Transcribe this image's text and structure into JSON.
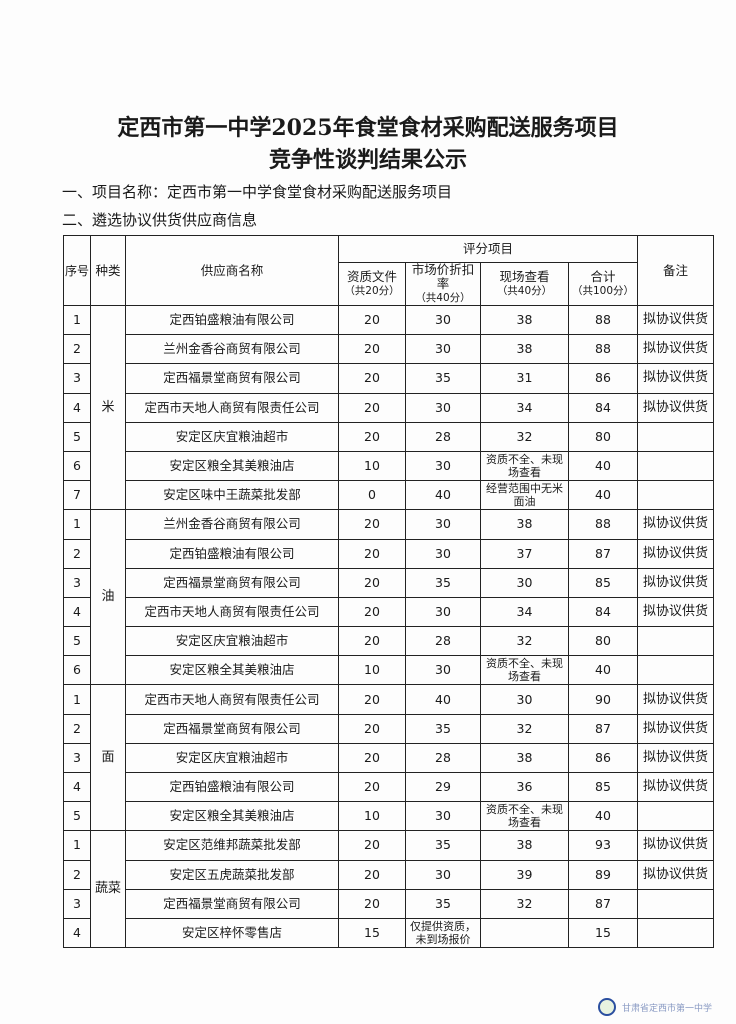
{
  "title_line1": "定西市第一中学2025年食堂食材采购配送服务项目",
  "title_line2": "竞争性谈判结果公示",
  "section1": "一、项目名称：定西市第一中学食堂食材采购配送服务项目",
  "section2": "二、遴选协议供货供应商信息",
  "headers": {
    "no": "序号",
    "category": "种类",
    "supplier": "供应商名称",
    "scoring": "评分项目",
    "qual": "资质文件",
    "qual_sub": "（共20分）",
    "price": "市场价折扣率",
    "price_sub": "（共40分）",
    "site": "现场查看",
    "site_sub": "（共40分）",
    "total": "合计",
    "total_sub": "（共100分）",
    "remark": "备注"
  },
  "groups": [
    {
      "category": "米",
      "rows": [
        {
          "no": "1",
          "supplier": "定西铂盛粮油有限公司",
          "qual": "20",
          "price": "30",
          "site": "38",
          "total": "88",
          "remark": "拟协议供货"
        },
        {
          "no": "2",
          "supplier": "兰州金香谷商贸有限公司",
          "qual": "20",
          "price": "30",
          "site": "38",
          "total": "88",
          "remark": "拟协议供货"
        },
        {
          "no": "3",
          "supplier": "定西福景堂商贸有限公司",
          "qual": "20",
          "price": "35",
          "site": "31",
          "total": "86",
          "remark": "拟协议供货"
        },
        {
          "no": "4",
          "supplier": "定西市天地人商贸有限责任公司",
          "qual": "20",
          "price": "30",
          "site": "34",
          "total": "84",
          "remark": "拟协议供货"
        },
        {
          "no": "5",
          "supplier": "安定区庆宜粮油超市",
          "qual": "20",
          "price": "28",
          "site": "32",
          "total": "80",
          "remark": ""
        },
        {
          "no": "6",
          "supplier": "安定区粮全其美粮油店",
          "qual": "10",
          "price": "30",
          "site": "资质不全、未现场查看",
          "total": "40",
          "remark": ""
        },
        {
          "no": "7",
          "supplier": "安定区味中王蔬菜批发部",
          "qual": "0",
          "price": "40",
          "site": "经营范围中无米面油",
          "total": "40",
          "remark": ""
        }
      ]
    },
    {
      "category": "油",
      "rows": [
        {
          "no": "1",
          "supplier": "兰州金香谷商贸有限公司",
          "qual": "20",
          "price": "30",
          "site": "38",
          "total": "88",
          "remark": "拟协议供货"
        },
        {
          "no": "2",
          "supplier": "定西铂盛粮油有限公司",
          "qual": "20",
          "price": "30",
          "site": "37",
          "total": "87",
          "remark": "拟协议供货"
        },
        {
          "no": "3",
          "supplier": "定西福景堂商贸有限公司",
          "qual": "20",
          "price": "35",
          "site": "30",
          "total": "85",
          "remark": "拟协议供货"
        },
        {
          "no": "4",
          "supplier": "定西市天地人商贸有限责任公司",
          "qual": "20",
          "price": "30",
          "site": "34",
          "total": "84",
          "remark": "拟协议供货"
        },
        {
          "no": "5",
          "supplier": "安定区庆宜粮油超市",
          "qual": "20",
          "price": "28",
          "site": "32",
          "total": "80",
          "remark": ""
        },
        {
          "no": "6",
          "supplier": "安定区粮全其美粮油店",
          "qual": "10",
          "price": "30",
          "site": "资质不全、未现场查看",
          "total": "40",
          "remark": ""
        }
      ]
    },
    {
      "category": "面",
      "rows": [
        {
          "no": "1",
          "supplier": "定西市天地人商贸有限责任公司",
          "qual": "20",
          "price": "40",
          "site": "30",
          "total": "90",
          "remark": "拟协议供货"
        },
        {
          "no": "2",
          "supplier": "定西福景堂商贸有限公司",
          "qual": "20",
          "price": "35",
          "site": "32",
          "total": "87",
          "remark": "拟协议供货"
        },
        {
          "no": "3",
          "supplier": "安定区庆宜粮油超市",
          "qual": "20",
          "price": "28",
          "site": "38",
          "total": "86",
          "remark": "拟协议供货"
        },
        {
          "no": "4",
          "supplier": "定西铂盛粮油有限公司",
          "qual": "20",
          "price": "29",
          "site": "36",
          "total": "85",
          "remark": "拟协议供货"
        },
        {
          "no": "5",
          "supplier": "安定区粮全其美粮油店",
          "qual": "10",
          "price": "30",
          "site": "资质不全、未现场查看",
          "total": "40",
          "remark": ""
        }
      ]
    },
    {
      "category": "蔬菜",
      "rows": [
        {
          "no": "1",
          "supplier": "安定区范维邦蔬菜批发部",
          "qual": "20",
          "price": "35",
          "site": "38",
          "total": "93",
          "remark": "拟协议供货"
        },
        {
          "no": "2",
          "supplier": "安定区五虎蔬菜批发部",
          "qual": "20",
          "price": "30",
          "site": "39",
          "total": "89",
          "remark": "拟协议供货"
        },
        {
          "no": "3",
          "supplier": "定西福景堂商贸有限公司",
          "qual": "20",
          "price": "35",
          "site": "32",
          "total": "87",
          "remark": ""
        },
        {
          "no": "4",
          "supplier": "安定区梓怀零售店",
          "qual": "15",
          "price": "仅提供资质，未到场报价",
          "site": "",
          "total": "15",
          "remark": ""
        }
      ]
    }
  ],
  "watermark": "甘肃省定西市第一中学"
}
